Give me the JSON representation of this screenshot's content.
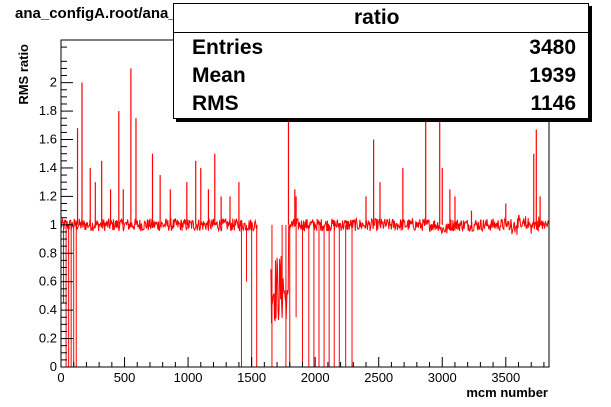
{
  "header": {
    "file_title": "ana_configA.root/ana_SM_alone.root"
  },
  "stats": {
    "title": "ratio",
    "entries_label": "Entries",
    "entries_value": "3480",
    "mean_label": "Mean",
    "mean_value": "1939",
    "rms_label": "RMS",
    "rms_value": "1146"
  },
  "colors": {
    "series": "#ff0000",
    "frame": "#000000",
    "background": "#ffffff"
  },
  "chart_data": {
    "type": "line",
    "title": "ratio",
    "xlabel": "mcm number",
    "ylabel": "RMS ratio",
    "xlim": [
      0,
      3840
    ],
    "ylim": [
      0,
      2.3
    ],
    "grid": false,
    "legend": "none",
    "x_ticks": [
      0,
      500,
      1000,
      1500,
      2000,
      2500,
      3000,
      3500
    ],
    "y_ticks": [
      0,
      0.2,
      0.4,
      0.6,
      0.8,
      1,
      1.2,
      1.4,
      1.6,
      1.8,
      2
    ],
    "x_tick_labels": [
      "0",
      "500",
      "1000",
      "1500",
      "2000",
      "2500",
      "3000",
      "3500"
    ],
    "y_tick_labels": [
      "0",
      "0.2",
      "0.4",
      "0.6",
      "0.8",
      "1",
      "1.2",
      "1.4",
      "1.6",
      "1.8",
      "2"
    ],
    "baseline": 1.0,
    "spikes": [
      {
        "x": 130,
        "y": 1.68
      },
      {
        "x": 165,
        "y": 2.0
      },
      {
        "x": 230,
        "y": 1.4
      },
      {
        "x": 270,
        "y": 1.3
      },
      {
        "x": 320,
        "y": 1.45
      },
      {
        "x": 390,
        "y": 1.25
      },
      {
        "x": 455,
        "y": 1.8
      },
      {
        "x": 490,
        "y": 1.25
      },
      {
        "x": 550,
        "y": 2.1
      },
      {
        "x": 590,
        "y": 1.75
      },
      {
        "x": 720,
        "y": 1.5
      },
      {
        "x": 780,
        "y": 1.35
      },
      {
        "x": 860,
        "y": 1.25
      },
      {
        "x": 990,
        "y": 1.3
      },
      {
        "x": 1060,
        "y": 1.45
      },
      {
        "x": 1100,
        "y": 1.4
      },
      {
        "x": 1160,
        "y": 1.25
      },
      {
        "x": 1210,
        "y": 1.5
      },
      {
        "x": 1260,
        "y": 1.2
      },
      {
        "x": 1330,
        "y": 1.2
      },
      {
        "x": 1400,
        "y": 1.3
      },
      {
        "x": 1790,
        "y": 2.0
      },
      {
        "x": 1840,
        "y": 1.25
      },
      {
        "x": 1850,
        "y": 1.2
      },
      {
        "x": 2400,
        "y": 1.2
      },
      {
        "x": 2460,
        "y": 1.6
      },
      {
        "x": 2510,
        "y": 1.3
      },
      {
        "x": 2690,
        "y": 1.4
      },
      {
        "x": 2870,
        "y": 2.0
      },
      {
        "x": 2980,
        "y": 2.0
      },
      {
        "x": 3000,
        "y": 1.4
      },
      {
        "x": 3060,
        "y": 1.25
      },
      {
        "x": 3100,
        "y": 1.2
      },
      {
        "x": 3230,
        "y": 1.1
      },
      {
        "x": 3500,
        "y": 1.15
      },
      {
        "x": 3720,
        "y": 1.5
      },
      {
        "x": 3740,
        "y": 1.67
      },
      {
        "x": 3770,
        "y": 1.2
      }
    ],
    "dips": [
      {
        "x": 20,
        "y": 0.45
      },
      {
        "x": 40,
        "y": 0.0
      },
      {
        "x": 60,
        "y": 0.0
      },
      {
        "x": 80,
        "y": 0.0
      },
      {
        "x": 100,
        "y": 0.0
      },
      {
        "x": 120,
        "y": 0.0
      },
      {
        "x": 1420,
        "y": 0.0
      },
      {
        "x": 1460,
        "y": 0.6
      },
      {
        "x": 1500,
        "y": 0.0
      },
      {
        "x": 1540,
        "y": 0.0
      },
      {
        "x": 1660,
        "y": 0.0
      },
      {
        "x": 1740,
        "y": 0.45
      },
      {
        "x": 1770,
        "y": 0.0
      },
      {
        "x": 1800,
        "y": 0.0
      },
      {
        "x": 1850,
        "y": 0.35
      },
      {
        "x": 1900,
        "y": 0.0
      },
      {
        "x": 1950,
        "y": 0.0
      },
      {
        "x": 1990,
        "y": 0.0
      },
      {
        "x": 2030,
        "y": 0.0
      },
      {
        "x": 2070,
        "y": 0.0
      },
      {
        "x": 2110,
        "y": 0.0
      },
      {
        "x": 2150,
        "y": 0.0
      },
      {
        "x": 2190,
        "y": 0.0
      },
      {
        "x": 2240,
        "y": 0.0
      },
      {
        "x": 2290,
        "y": 0.0
      }
    ],
    "empty_ranges": [
      [
        1545,
        1650
      ]
    ],
    "noisy_segments": [
      {
        "from": 1650,
        "to": 1760,
        "center": 0.55,
        "spread": 0.25
      },
      {
        "from": 1760,
        "to": 1790,
        "center": 0.45,
        "spread": 0.12
      }
    ]
  }
}
